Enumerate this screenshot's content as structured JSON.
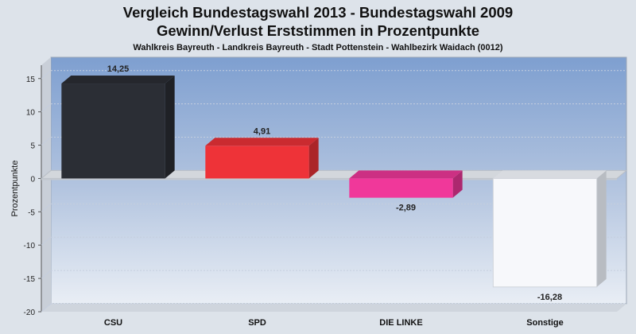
{
  "chart_data": {
    "type": "bar",
    "title": "Vergleich Bundestagswahl 2013 - Bundestagswahl 2009",
    "subtitle_line": "Gewinn/Verlust Erststimmen in Prozentpunkte",
    "subtitle": "Wahlkreis Bayreuth - Landkreis Bayreuth - Stadt Pottenstein - Wahlbezirk Waidach (0012)",
    "ylabel": "Prozentpunkte",
    "xlabel": "",
    "ylim": [
      -20,
      17
    ],
    "yticks": [
      15,
      10,
      5,
      0,
      -5,
      -10,
      -15,
      -20
    ],
    "categories": [
      "CSU",
      "SPD",
      "DIE LINKE",
      "Sonstige"
    ],
    "values": [
      14.25,
      4.91,
      -2.89,
      -16.28
    ],
    "value_labels": [
      "14,25",
      "4,91",
      "-2,89",
      "-16,28"
    ],
    "colors": [
      "#2b2e35",
      "#ee3338",
      "#f0389a",
      "#f7f8fb"
    ],
    "grid": true,
    "legend": "none"
  }
}
